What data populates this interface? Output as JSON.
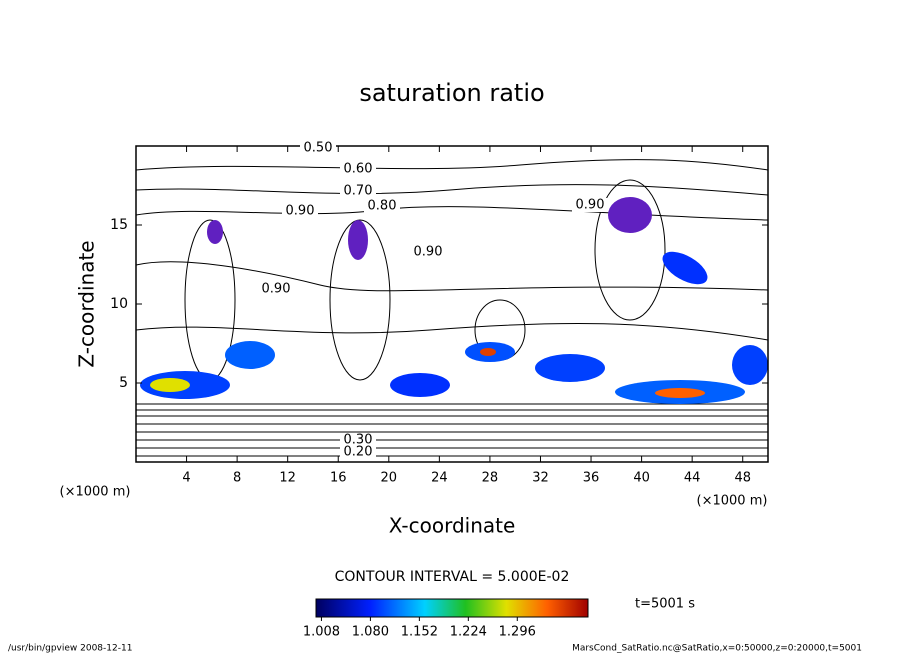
{
  "chart_data": {
    "type": "contour",
    "title": "saturation ratio",
    "x_label": "X-coordinate",
    "y_label": "Z-coordinate",
    "x_unit": "(×1000 m)",
    "y_unit": "(×1000 m)",
    "xlim": [
      0,
      50
    ],
    "xticks": [
      4,
      8,
      12,
      16,
      20,
      24,
      28,
      32,
      36,
      40,
      44,
      48
    ],
    "ylim": [
      0,
      20
    ],
    "yticks": [
      5,
      10,
      15
    ],
    "contour_labels": [
      {
        "value": 0.5,
        "label": "0.50"
      },
      {
        "value": 0.6,
        "label": "0.60"
      },
      {
        "value": 0.7,
        "label": "0.70"
      },
      {
        "value": 0.9,
        "label": "0.90"
      },
      {
        "value": 0.8,
        "label": "0.80"
      },
      {
        "value": 0.9,
        "label": "0.90"
      },
      {
        "value": 0.9,
        "label": "0.90"
      },
      {
        "value": 0.9,
        "label": "0.90"
      },
      {
        "value": 0.3,
        "label": "0.30"
      },
      {
        "value": 0.2,
        "label": "0.20"
      }
    ],
    "contour_interval": "CONTOUR INTERVAL = 5.000E-02",
    "colorbar": {
      "lim": [
        1.0,
        1.4
      ],
      "ticks": [
        {
          "value": 1.008,
          "label": "1.008"
        },
        {
          "value": 1.08,
          "label": "1.080"
        },
        {
          "value": 1.152,
          "label": "1.152"
        },
        {
          "value": 1.224,
          "label": "1.224"
        },
        {
          "value": 1.296,
          "label": "1.296"
        }
      ]
    },
    "time_label": "t=5001 s",
    "footer_left": "/usr/bin/gpview  2008-12-11",
    "footer_right": "MarsCond_SatRatio.nc@SatRatio,x=0:50000,z=0:20000,t=5001"
  }
}
